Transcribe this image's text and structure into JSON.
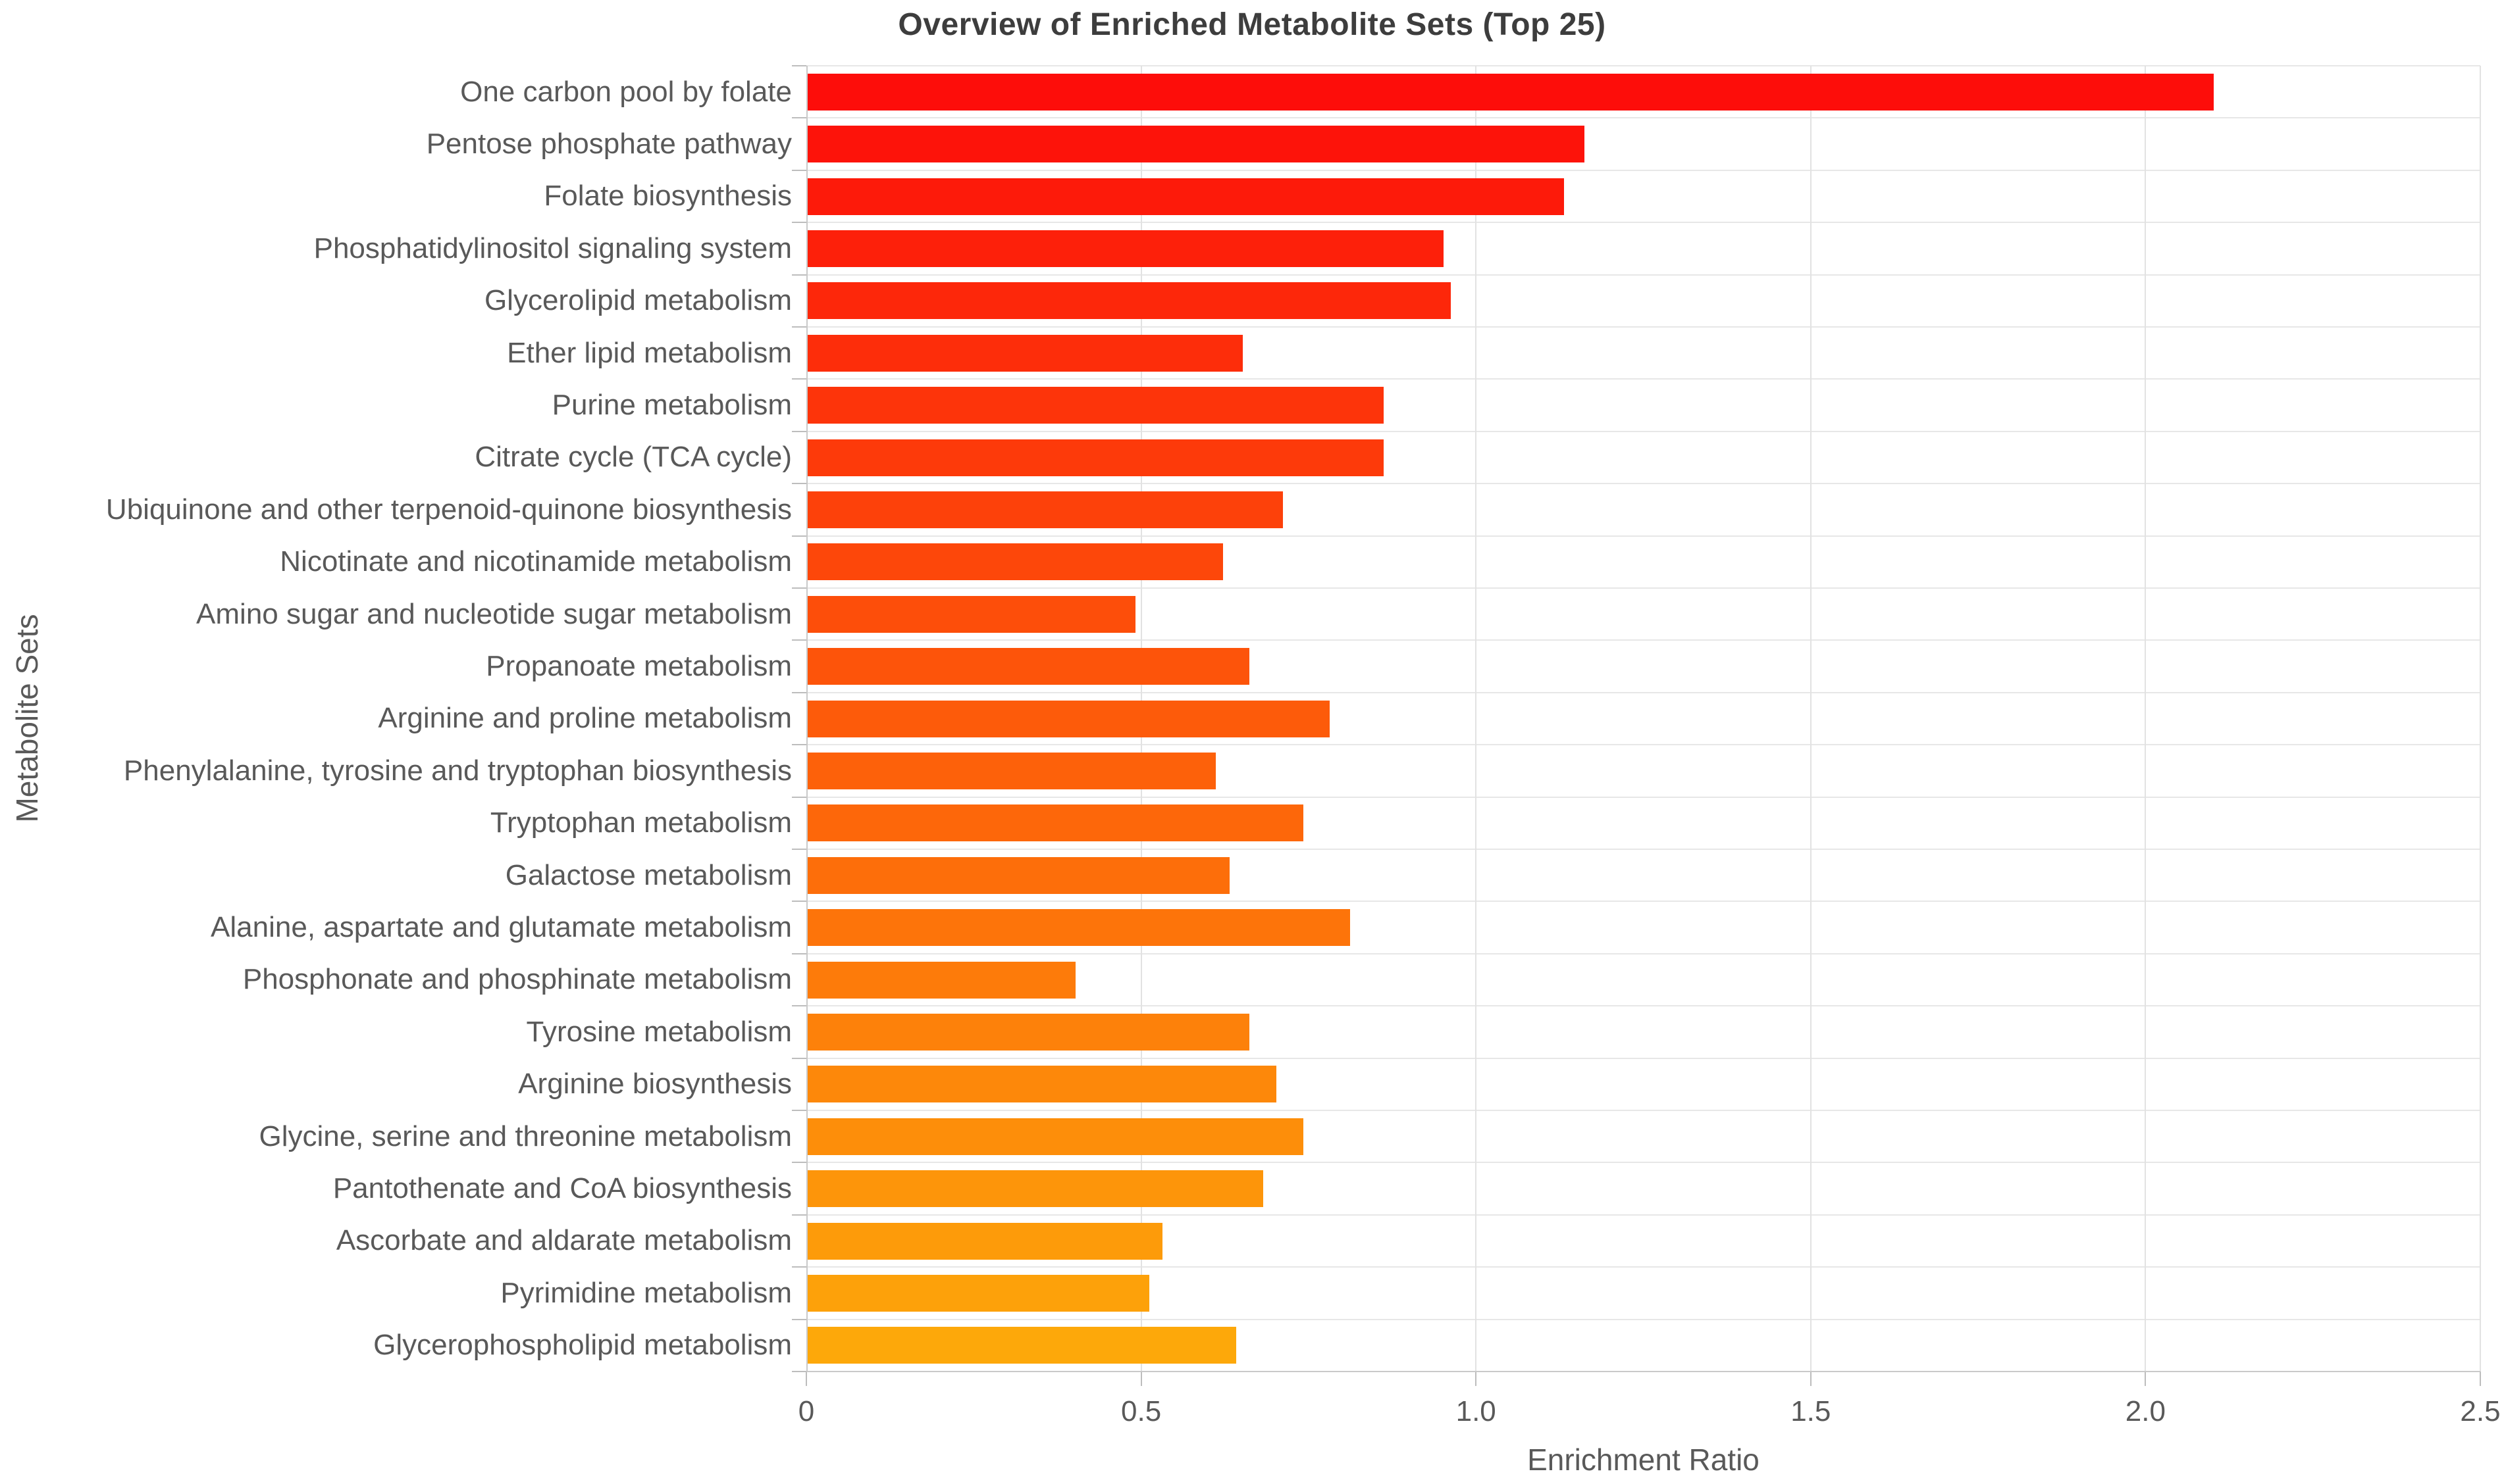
{
  "chart_data": {
    "type": "bar",
    "orientation": "horizontal",
    "title": "Overview of Enriched Metabolite Sets (Top 25)",
    "xlabel": "Enrichment Ratio",
    "ylabel": "Metabolite Sets",
    "xlim": [
      0,
      2.5
    ],
    "xticks": [
      0,
      0.5,
      1.0,
      1.5,
      2.0,
      2.5
    ],
    "xtick_labels": [
      "0",
      "0.5",
      "1.0",
      "1.5",
      "2.0",
      "2.5"
    ],
    "grid": true,
    "legend": false,
    "categories": [
      "One carbon pool by folate",
      "Pentose phosphate pathway",
      "Folate biosynthesis",
      "Phosphatidylinositol signaling system",
      "Glycerolipid metabolism",
      "Ether lipid metabolism",
      "Purine metabolism",
      "Citrate cycle (TCA cycle)",
      "Ubiquinone and other terpenoid-quinone biosynthesis",
      "Nicotinate and nicotinamide metabolism",
      "Amino sugar and nucleotide sugar metabolism",
      "Propanoate metabolism",
      "Arginine and proline metabolism",
      "Phenylalanine, tyrosine and tryptophan biosynthesis",
      "Tryptophan metabolism",
      "Galactose metabolism",
      "Alanine, aspartate and glutamate metabolism",
      "Phosphonate and phosphinate metabolism",
      "Tyrosine metabolism",
      "Arginine biosynthesis",
      "Glycine, serine and threonine metabolism",
      "Pantothenate and CoA biosynthesis",
      "Ascorbate and aldarate metabolism",
      "Pyrimidine metabolism",
      "Glycerophospholipid metabolism"
    ],
    "values": [
      2.1,
      1.16,
      1.13,
      0.95,
      0.96,
      0.65,
      0.86,
      0.86,
      0.71,
      0.62,
      0.49,
      0.66,
      0.78,
      0.61,
      0.74,
      0.63,
      0.81,
      0.4,
      0.66,
      0.7,
      0.74,
      0.68,
      0.53,
      0.51,
      0.64
    ],
    "bar_colors": [
      "#fd0d0a",
      "#fd130a",
      "#fd1a0a",
      "#fd200a",
      "#fd270a",
      "#fd2d0a",
      "#fd340a",
      "#fd3a0a",
      "#fd410a",
      "#fd470a",
      "#fd4e0a",
      "#fd540a",
      "#fd5b0a",
      "#fd610a",
      "#fd670a",
      "#fd6e0a",
      "#fd740a",
      "#fd7b0a",
      "#fd810a",
      "#fd880a",
      "#fd8e0a",
      "#fd950a",
      "#fd9b0a",
      "#fda10a",
      "#fda80a"
    ],
    "colors": {
      "background": "#ffffff",
      "grid": "#e2e2e2",
      "axis": "#c9c9c9",
      "tick": "#bdbdbd",
      "label_text": "#595959",
      "title_text": "#3d3d3d"
    }
  }
}
